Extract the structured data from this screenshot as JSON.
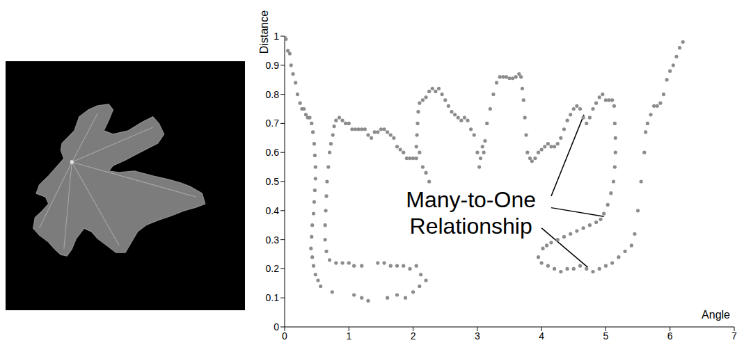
{
  "chart_data": {
    "type": "scatter",
    "x_label": "Angle",
    "y_label": "Distance",
    "color": "#8c8c8c",
    "marker": "circle",
    "grid": false,
    "xlim": [
      0,
      7
    ],
    "xticks": [
      0,
      1,
      2,
      3,
      4,
      5,
      6,
      7
    ],
    "ylim": [
      0,
      1
    ],
    "yticks": [
      0,
      0.1,
      0.2,
      0.3,
      0.4,
      0.5,
      0.6,
      0.7,
      0.8,
      0.9,
      1
    ],
    "x": [
      0,
      0.02,
      0.05,
      0.08,
      0.1,
      0.13,
      0.17,
      0.2,
      0.24,
      0.27,
      0.3,
      0.33,
      0.36,
      0.39,
      0.42,
      0.44,
      0.46,
      0.47,
      0.48,
      0.48,
      0.47,
      0.46,
      0.45,
      0.43,
      0.42,
      0.41,
      0.43,
      0.45,
      0.48,
      0.52,
      0.56,
      0.74,
      1.08,
      1.2,
      1.3,
      1.6,
      1.75,
      1.88,
      2.0,
      2.1,
      2.2,
      2.12,
      0.8,
      0.77,
      0.75,
      0.72,
      0.7,
      0.68,
      0.66,
      0.65,
      0.64,
      0.63,
      0.63,
      0.65,
      0.7,
      0.8,
      0.9,
      1.0,
      1.08,
      1.2,
      1.45,
      1.55,
      1.65,
      1.75,
      1.85,
      1.95,
      2.05,
      0.85,
      0.9,
      0.95,
      1.0,
      1.05,
      1.1,
      1.15,
      1.2,
      1.25,
      1.3,
      1.35,
      1.4,
      1.45,
      1.5,
      1.55,
      1.6,
      1.65,
      1.7,
      1.75,
      1.8,
      1.85,
      1.9,
      1.95,
      2.0,
      2.05,
      2.1,
      2.15,
      2.2,
      2.25,
      2.05,
      2.06,
      2.07,
      2.08,
      2.1,
      2.15,
      2.2,
      2.25,
      2.3,
      2.35,
      2.4,
      2.45,
      2.5,
      2.55,
      2.6,
      2.65,
      2.7,
      2.75,
      2.8,
      2.85,
      2.9,
      2.95,
      3.0,
      3.03,
      3.05,
      3.08,
      3.1,
      3.12,
      3.15,
      3.2,
      3.25,
      3.3,
      3.35,
      3.4,
      3.45,
      3.5,
      3.55,
      3.6,
      3.65,
      3.68,
      3.7,
      3.72,
      3.74,
      3.76,
      3.78,
      3.82,
      3.85,
      3.9,
      3.95,
      4.0,
      4.05,
      4.1,
      4.15,
      4.2,
      4.25,
      4.3,
      4.35,
      4.4,
      4.45,
      4.5,
      4.55,
      4.6,
      4.65,
      4.7,
      4.75,
      4.8,
      4.85,
      4.9,
      4.95,
      5.0,
      5.05,
      5.1,
      5.13,
      5.14,
      5.15,
      5.15,
      5.14,
      5.12,
      5.08,
      5.03,
      4.97,
      4.92,
      4.85,
      4.75,
      4.65,
      4.55,
      4.45,
      4.35,
      4.25,
      4.15,
      4.08,
      4.02,
      3.95,
      4.0,
      4.1,
      4.2,
      4.3,
      4.4,
      4.5,
      4.6,
      4.7,
      4.8,
      4.9,
      5.0,
      5.1,
      5.2,
      5.3,
      5.4,
      5.45,
      5.5,
      5.55,
      5.6,
      5.62,
      5.65,
      5.7,
      5.75,
      5.8,
      5.85,
      5.9,
      5.95,
      6.0,
      6.05,
      6.1,
      6.15,
      6.2
    ],
    "values": [
      1,
      0.99,
      0.95,
      0.94,
      0.9,
      0.87,
      0.84,
      0.8,
      0.77,
      0.75,
      0.75,
      0.73,
      0.72,
      0.72,
      0.7,
      0.67,
      0.63,
      0.59,
      0.55,
      0.51,
      0.47,
      0.43,
      0.39,
      0.35,
      0.31,
      0.27,
      0.24,
      0.21,
      0.18,
      0.16,
      0.14,
      0.12,
      0.11,
      0.1,
      0.09,
      0.1,
      0.11,
      0.1,
      0.12,
      0.14,
      0.16,
      0.18,
      0.71,
      0.69,
      0.66,
      0.63,
      0.6,
      0.55,
      0.5,
      0.45,
      0.4,
      0.35,
      0.3,
      0.26,
      0.23,
      0.22,
      0.22,
      0.22,
      0.21,
      0.21,
      0.22,
      0.22,
      0.21,
      0.21,
      0.21,
      0.2,
      0.21,
      0.72,
      0.71,
      0.7,
      0.7,
      0.68,
      0.68,
      0.68,
      0.68,
      0.68,
      0.66,
      0.65,
      0.67,
      0.67,
      0.68,
      0.68,
      0.67,
      0.66,
      0.65,
      0.62,
      0.61,
      0.6,
      0.58,
      0.58,
      0.58,
      0.58,
      0.6,
      0.55,
      0.53,
      0.5,
      0.62,
      0.66,
      0.7,
      0.74,
      0.77,
      0.78,
      0.79,
      0.81,
      0.82,
      0.81,
      0.82,
      0.8,
      0.78,
      0.76,
      0.74,
      0.73,
      0.72,
      0.71,
      0.72,
      0.71,
      0.68,
      0.66,
      0.6,
      0.55,
      0.58,
      0.62,
      0.6,
      0.64,
      0.7,
      0.75,
      0.8,
      0.84,
      0.86,
      0.86,
      0.86,
      0.855,
      0.855,
      0.86,
      0.87,
      0.86,
      0.82,
      0.78,
      0.72,
      0.66,
      0.6,
      0.58,
      0.57,
      0.58,
      0.6,
      0.61,
      0.62,
      0.63,
      0.62,
      0.62,
      0.63,
      0.65,
      0.68,
      0.71,
      0.73,
      0.75,
      0.76,
      0.75,
      0.72,
      0.7,
      0.72,
      0.75,
      0.77,
      0.79,
      0.8,
      0.78,
      0.78,
      0.78,
      0.76,
      0.7,
      0.65,
      0.6,
      0.55,
      0.5,
      0.46,
      0.42,
      0.39,
      0.37,
      0.36,
      0.35,
      0.34,
      0.33,
      0.32,
      0.31,
      0.3,
      0.29,
      0.28,
      0.27,
      0.24,
      0.22,
      0.21,
      0.2,
      0.19,
      0.2,
      0.2,
      0.21,
      0.2,
      0.19,
      0.2,
      0.21,
      0.22,
      0.24,
      0.26,
      0.28,
      0.32,
      0.4,
      0.5,
      0.6,
      0.67,
      0.7,
      0.73,
      0.76,
      0.76,
      0.77,
      0.8,
      0.85,
      0.88,
      0.9,
      0.93,
      0.96,
      0.98
    ],
    "annotations": [
      {
        "text": "Many-to-One Relationship",
        "x": 2.9,
        "y": 0.4,
        "arrows": [
          {
            "from": [
              4.15,
              0.45
            ],
            "to": [
              4.66,
              0.73
            ]
          },
          {
            "from": [
              4.15,
              0.41
            ],
            "to": [
              4.97,
              0.38
            ]
          },
          {
            "from": [
              4.0,
              0.34
            ],
            "to": [
              4.72,
              0.205
            ]
          }
        ]
      }
    ]
  }
}
